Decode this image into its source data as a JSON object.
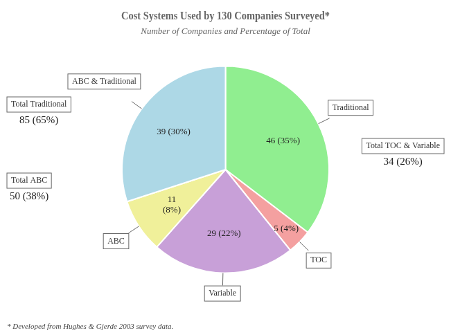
{
  "chart_data": {
    "type": "pie",
    "title": "Cost Systems Used by 130 Companies Surveyed*",
    "subtitle": "Number of Companies and Percentage of Total",
    "footnote": "* Developed from Hughes & Gjerde 2003 survey data.",
    "categories": [
      "Traditional",
      "TOC",
      "Variable",
      "ABC",
      "ABC & Traditional"
    ],
    "values": [
      46,
      5,
      29,
      11,
      39
    ],
    "value_labels": [
      "46 (35%)",
      "5 (4%)",
      "29 (22%)",
      "11\n(8%)",
      "39 (30%)"
    ],
    "colors": [
      "#90EE90",
      "#F4A0A0",
      "#C8A0D8",
      "#F0F09A",
      "#ADD8E6"
    ],
    "data_labels": true,
    "legend": false,
    "annotations": [
      {
        "label": "Total Traditional",
        "text": "85 (65%)"
      },
      {
        "label": "Total ABC",
        "text": "50 (38%)"
      },
      {
        "label": "Total TOC & Variable",
        "text": "34 (26%)"
      }
    ]
  }
}
